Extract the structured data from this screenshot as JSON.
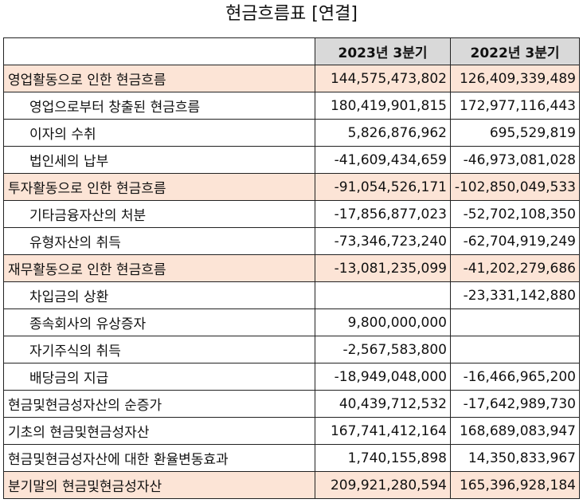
{
  "title": "현금흐름표 [연결]",
  "columns": [
    "",
    "2023년 3분기",
    "2022년 3분기"
  ],
  "rows": [
    {
      "label": "영업활동으로 인한 현금흐름",
      "v2023": "144,575,473,802",
      "v2022": "126,409,339,489",
      "highlight": true,
      "indent": false
    },
    {
      "label": "영업으로부터 창출된 현금흐름",
      "v2023": "180,419,901,815",
      "v2022": "172,977,116,443",
      "highlight": false,
      "indent": true
    },
    {
      "label": "이자의 수취",
      "v2023": "5,826,876,962",
      "v2022": "695,529,819",
      "highlight": false,
      "indent": true
    },
    {
      "label": "법인세의 납부",
      "v2023": "-41,609,434,659",
      "v2022": "-46,973,081,028",
      "highlight": false,
      "indent": true
    },
    {
      "label": "투자활동으로 인한 현금흐름",
      "v2023": "-91,054,526,171",
      "v2022": "-102,850,049,533",
      "highlight": true,
      "indent": false
    },
    {
      "label": "기타금융자산의 처분",
      "v2023": "-17,856,877,023",
      "v2022": "-52,702,108,350",
      "highlight": false,
      "indent": true
    },
    {
      "label": "유형자산의 취득",
      "v2023": "-73,346,723,240",
      "v2022": "-62,704,919,249",
      "highlight": false,
      "indent": true
    },
    {
      "label": "재무활동으로 인한 현금흐름",
      "v2023": "-13,081,235,099",
      "v2022": "-41,202,279,686",
      "highlight": true,
      "indent": false
    },
    {
      "label": "차입금의 상환",
      "v2023": "",
      "v2022": "-23,331,142,880",
      "highlight": false,
      "indent": true
    },
    {
      "label": "종속회사의 유상증자",
      "v2023": "9,800,000,000",
      "v2022": "",
      "highlight": false,
      "indent": true
    },
    {
      "label": "자기주식의 취득",
      "v2023": "-2,567,583,800",
      "v2022": "",
      "highlight": false,
      "indent": true
    },
    {
      "label": "배당금의 지급",
      "v2023": "-18,949,048,000",
      "v2022": "-16,466,965,200",
      "highlight": false,
      "indent": true
    },
    {
      "label": "현금및현금성자산의 순증가",
      "v2023": "40,439,712,532",
      "v2022": "-17,642,989,730",
      "highlight": false,
      "indent": false
    },
    {
      "label": "기초의 현금및현금성자산",
      "v2023": "167,741,412,164",
      "v2022": "168,689,083,947",
      "highlight": false,
      "indent": false
    },
    {
      "label": "현금및현금성자산에 대한 환율변동효과",
      "v2023": "1,740,155,898",
      "v2022": "14,350,833,967",
      "highlight": false,
      "indent": false
    },
    {
      "label": "분기말의 현금및현금성자산",
      "v2023": "209,921,280,594",
      "v2022": "165,396,928,184",
      "highlight": true,
      "indent": false
    }
  ]
}
